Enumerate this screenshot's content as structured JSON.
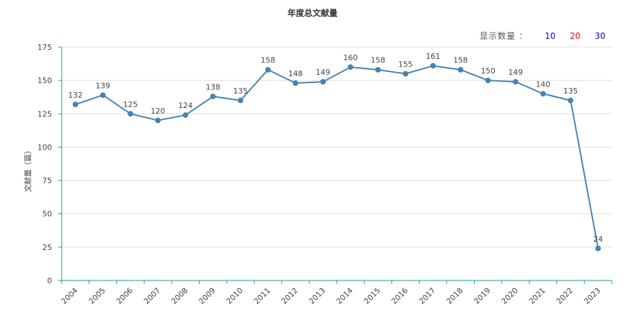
{
  "title": "年度总文献量",
  "selector": {
    "label": "显示数量 ：",
    "options": [
      {
        "text": "10",
        "color": "#0000ee"
      },
      {
        "text": "20",
        "color": "#ee0000"
      },
      {
        "text": "30",
        "color": "#0000aa"
      }
    ]
  },
  "chart_data": {
    "type": "line",
    "title": "年度总文献量",
    "ylabel": "文献量（篇）",
    "xlabel": "",
    "categories": [
      "2004",
      "2005",
      "2006",
      "2007",
      "2008",
      "2009",
      "2010",
      "2011",
      "2012",
      "2013",
      "2014",
      "2015",
      "2016",
      "2017",
      "2018",
      "2019",
      "2020",
      "2021",
      "2022",
      "2023"
    ],
    "series": [
      {
        "values": [
          132,
          139,
          125,
          120,
          124,
          138,
          135,
          158,
          148,
          149,
          160,
          158,
          155,
          161,
          158,
          150,
          149,
          140,
          135,
          24
        ],
        "color": "#4682b4"
      }
    ],
    "ylim": [
      0,
      175
    ],
    "yticks": [
      0,
      25,
      50,
      75,
      100,
      125,
      150,
      175
    ],
    "grid": true,
    "colors": {
      "axis": "#1a9a9a",
      "grid": "#dddddd",
      "line": "#4682b4"
    }
  }
}
